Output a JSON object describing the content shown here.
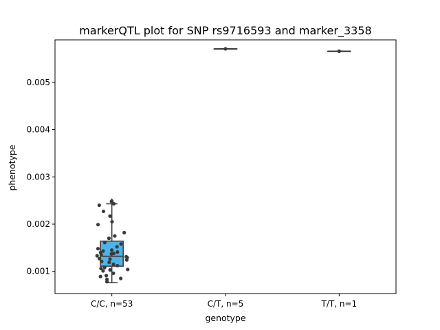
{
  "chart_data": {
    "type": "box",
    "title": "markerQTL plot for SNP rs9716593 and marker_3358",
    "xlabel": "genotype",
    "ylabel": "phenotype",
    "ylim": [
      0.00053,
      0.0059
    ],
    "yticks": [
      0.001,
      0.002,
      0.003,
      0.004,
      0.005
    ],
    "ytick_labels": [
      "0.001",
      "0.002",
      "0.003",
      "0.004",
      "0.005"
    ],
    "categories": [
      "C/C, n=53",
      "C/T, n=5",
      "T/T, n=1"
    ],
    "colors": {
      "box_fill": "#4eb3e8",
      "box_edge": "#3f3f3f",
      "points": "#3a3a3a"
    },
    "boxes": [
      {
        "category": "C/C, n=53",
        "whisker_low": 0.00076,
        "q1": 0.00111,
        "median": 0.00132,
        "q3": 0.00164,
        "whisker_high": 0.00243,
        "outliers": [
          0.00249
        ]
      },
      {
        "category": "C/T, n=5",
        "whisker_low": 0.00571,
        "q1": 0.00571,
        "median": 0.00571,
        "q3": 0.00571,
        "whisker_high": 0.00571,
        "outliers": []
      },
      {
        "category": "T/T, n=1",
        "whisker_low": 0.00566,
        "q1": 0.00566,
        "median": 0.00566,
        "q3": 0.00566,
        "whisker_high": 0.00566,
        "outliers": []
      }
    ],
    "points": [
      {
        "category": 0,
        "values": [
          0.00248,
          0.00243,
          0.0024,
          0.00227,
          0.00217,
          0.00205,
          0.00199,
          0.00182,
          0.00175,
          0.0017,
          0.00161,
          0.00158,
          0.00152,
          0.00148,
          0.00145,
          0.00143,
          0.00141,
          0.0014,
          0.00138,
          0.00137,
          0.00135,
          0.00133,
          0.00131,
          0.00129,
          0.00127,
          0.00126,
          0.00124,
          0.00121,
          0.00119,
          0.00115,
          0.00112,
          0.00108,
          0.00106,
          0.00104,
          0.00103,
          0.00101,
          0.00096,
          0.00091,
          0.00089,
          0.00085,
          0.00083,
          0.00078
        ]
      },
      {
        "category": 1,
        "values": [
          0.00571
        ]
      },
      {
        "category": 2,
        "values": [
          0.00566
        ]
      }
    ]
  }
}
